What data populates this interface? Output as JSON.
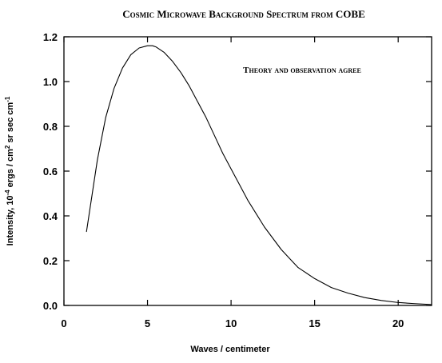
{
  "chart_data": {
    "type": "line",
    "title": "Cosmic Microwave Background Spectrum from COBE",
    "annotation": "Theory and observation agree",
    "xlabel": "Waves / centimeter",
    "ylabel": {
      "prefix": "Intensity, 10",
      "exp1": "-4",
      "mid1": " ergs / cm",
      "exp2": "2",
      "mid2": " sr sec cm",
      "exp3": "-1"
    },
    "xlim": [
      0,
      22
    ],
    "ylim": [
      0,
      1.2
    ],
    "xticks": [
      0,
      5,
      10,
      15,
      20
    ],
    "xtick_labels": [
      "0",
      "5",
      "10",
      "15",
      "20"
    ],
    "yticks": [
      0,
      0.2,
      0.4,
      0.6,
      0.8,
      1.0,
      1.2
    ],
    "ytick_labels": [
      "0.0",
      "0.2",
      "0.4",
      "0.6",
      "0.8",
      "1.0",
      "1.2"
    ],
    "grid": false,
    "legend": "none",
    "series": [
      {
        "color": "#000000",
        "x": [
          1.35,
          2,
          2.5,
          3,
          3.5,
          4,
          4.5,
          5,
          5.3,
          5.5,
          6,
          6.5,
          7,
          7.5,
          8,
          8.5,
          9,
          9.5,
          10,
          10.5,
          11,
          11.5,
          12,
          12.5,
          13,
          13.5,
          14,
          15,
          16,
          17,
          18,
          19,
          20,
          21,
          22
        ],
        "y": [
          0.33,
          0.65,
          0.84,
          0.97,
          1.06,
          1.12,
          1.15,
          1.16,
          1.16,
          1.155,
          1.13,
          1.09,
          1.04,
          0.98,
          0.91,
          0.84,
          0.76,
          0.68,
          0.61,
          0.54,
          0.47,
          0.41,
          0.35,
          0.3,
          0.25,
          0.21,
          0.17,
          0.12,
          0.08,
          0.055,
          0.035,
          0.022,
          0.013,
          0.008,
          0.004
        ]
      }
    ]
  }
}
